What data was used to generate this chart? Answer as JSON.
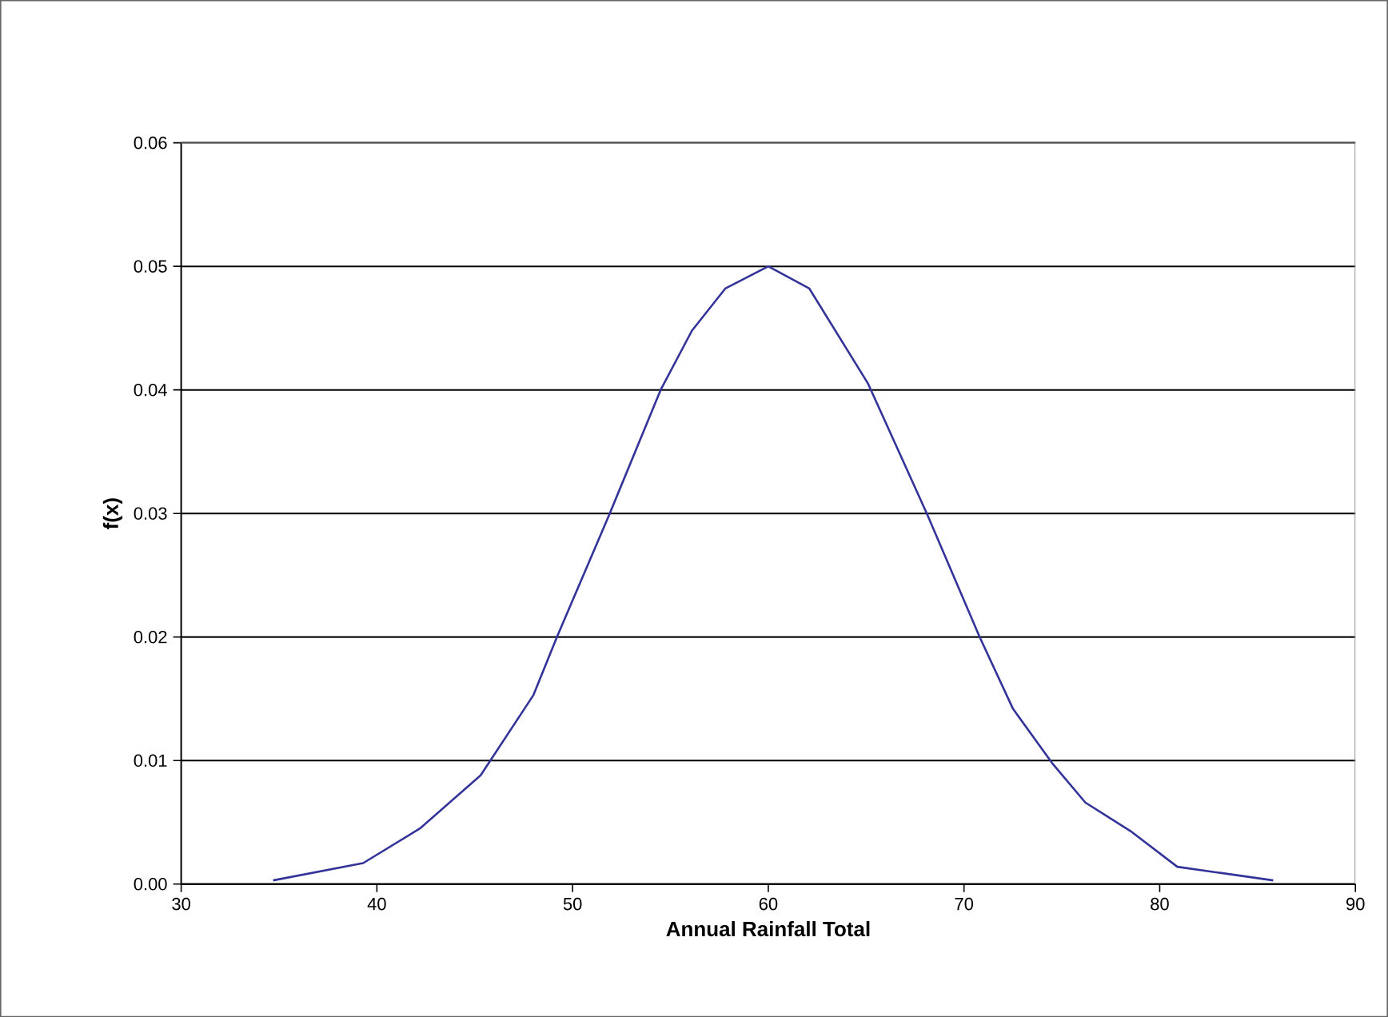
{
  "chart_data": {
    "type": "line",
    "xlabel": "Annual Rainfall Total",
    "ylabel": "f(x)",
    "series": [
      {
        "color": "#333399",
        "x": [
          34.7,
          39.3,
          42.2,
          45.3,
          48.0,
          49.2,
          51.9,
          54.5,
          56.1,
          57.8,
          60.0,
          62.1,
          65.1,
          68.1,
          70.8,
          72.5,
          74.5,
          76.2,
          78.5,
          80.9,
          85.8
        ],
        "values": [
          0.0003,
          0.0017,
          0.0045,
          0.0088,
          0.0153,
          0.02,
          0.03,
          0.04,
          0.0448,
          0.0482,
          0.05,
          0.0482,
          0.0405,
          0.03,
          0.02,
          0.0142,
          0.0098,
          0.0066,
          0.0043,
          0.0014,
          0.0003
        ]
      }
    ],
    "xlim": [
      30,
      90
    ],
    "ylim": [
      0,
      0.06
    ],
    "xticks": [
      30,
      40,
      50,
      60,
      70,
      80,
      90
    ],
    "yticks": [
      {
        "value": 0,
        "label": "0.00"
      },
      {
        "value": 0.01,
        "label": "0.01"
      },
      {
        "value": 0.02,
        "label": "0.02"
      },
      {
        "value": 0.03,
        "label": "0.03"
      },
      {
        "value": 0.04,
        "label": "0.04"
      },
      {
        "value": 0.05,
        "label": "0.05"
      },
      {
        "value": 0.06,
        "label": "0.06"
      }
    ],
    "grid": "y",
    "marker": "none",
    "line_style": "solid"
  }
}
